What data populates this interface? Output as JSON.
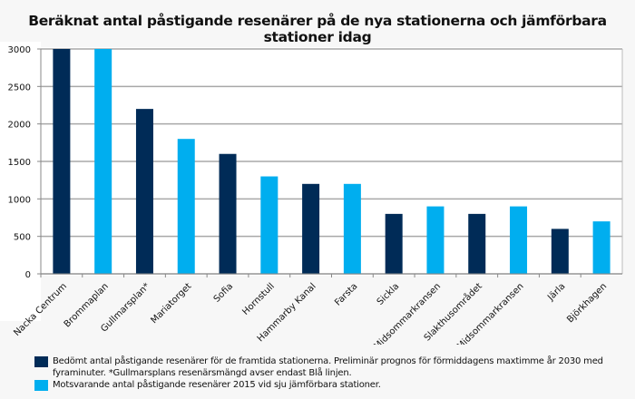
{
  "chart_data": {
    "type": "bar",
    "title": "Beräknat antal påstigande resenärer på de nya stationerna och jämförbara stationer idag",
    "categories": [
      "Nacka Centrum",
      "Brommaplan",
      "Gullmarsplan*",
      "Mariatorget",
      "Sofia",
      "Hornstull",
      "Hammarby Kanal",
      "Farsta",
      "Sickla",
      "Midsommarkransen",
      "Slakthusområdet",
      "Midsommarkransen",
      "Järla",
      "Björkhagen"
    ],
    "series": [
      {
        "name": "Bedömt antal påstigande resenärer för de framtida stationerna. Preliminär prognos för förmiddagens maxtimme år 2030 med fyraminuter. *Gullmarsplans resenärsmängd avser endast Blå linjen.",
        "color": "#002B57",
        "values": [
          3000,
          null,
          2200,
          null,
          1600,
          null,
          1200,
          null,
          800,
          null,
          800,
          null,
          600,
          null
        ]
      },
      {
        "name": "Motsvarande antal påstigande resenärer 2015 vid sju jämförbara stationer.",
        "color": "#00AEEF",
        "values": [
          null,
          3000,
          null,
          1800,
          null,
          1300,
          null,
          1200,
          null,
          900,
          null,
          900,
          null,
          700
        ]
      }
    ],
    "xlabel": "",
    "ylabel": "",
    "ylim": [
      0,
      3000
    ],
    "yticks": [
      "0",
      "500",
      "1000",
      "1500",
      "2000",
      "2500",
      "3000"
    ],
    "grid": true,
    "legend_position": "bottom"
  }
}
